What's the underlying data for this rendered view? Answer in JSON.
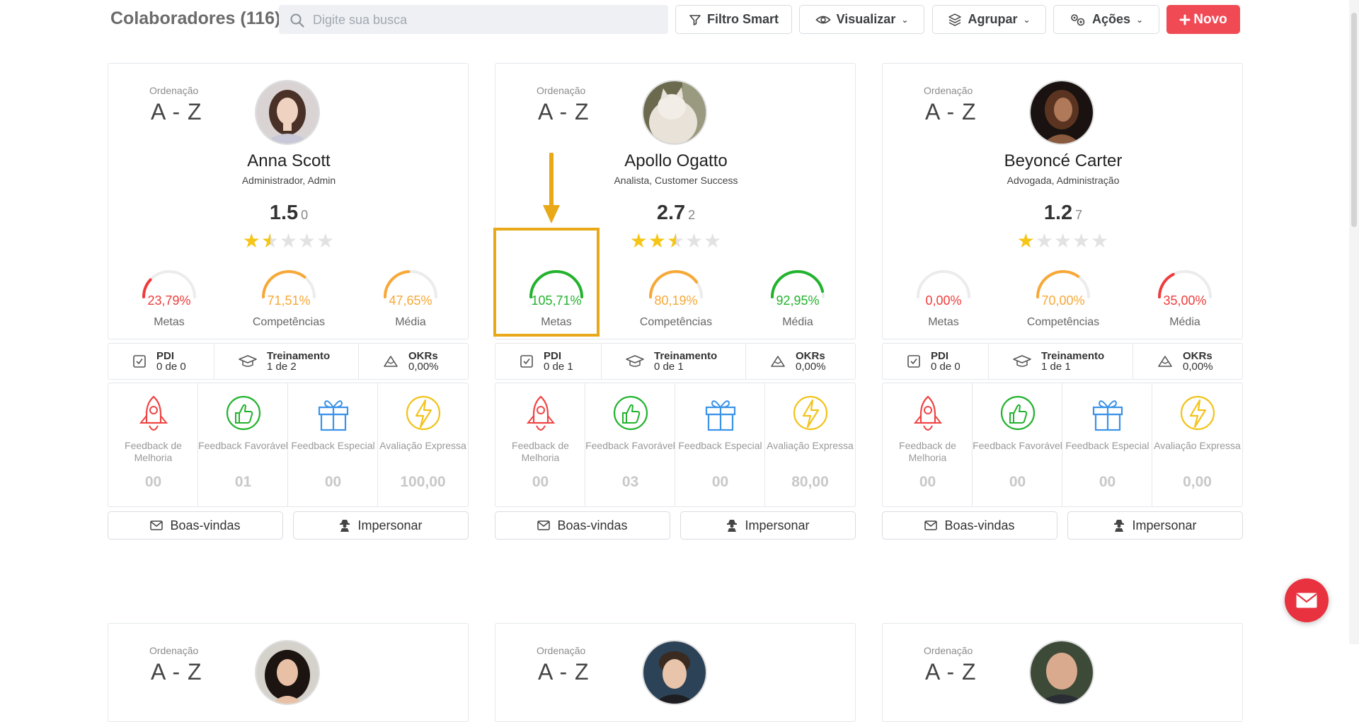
{
  "header": {
    "title": "Colaboradores (116)",
    "search_placeholder": "Digite sua busca",
    "filter_label": "Filtro Smart",
    "view_label": "Visualizar",
    "group_label": "Agrupar",
    "actions_label": "Ações",
    "new_label": "Novo",
    "new_color": "#f04a55"
  },
  "labels": {
    "ordering": "Ordenação",
    "ordering_value": "A - Z",
    "metas": "Metas",
    "competencias": "Competências",
    "media": "Média",
    "pdi": "PDI",
    "treinamento": "Treinamento",
    "okrs": "OKRs",
    "fb_melhoria": "Feedback de Melhoria",
    "fb_favoravel": "Feedback Favorável",
    "fb_especial": "Feedback Especial",
    "avaliacao": "Avaliação Expressa",
    "boas_vindas": "Boas-vindas",
    "impersonar": "Impersonar"
  },
  "colors": {
    "red": "#ef3b3b",
    "orange": "#f7a836",
    "green": "#22b32e",
    "track": "#ececec",
    "star": "#f5c518"
  },
  "collaborators": [
    {
      "name": "Anna Scott",
      "role": "Administrador, Admin",
      "score": "1.5",
      "rating_count": "0",
      "stars": 1.5,
      "metas": "23,79%",
      "metas_pct": 23.79,
      "metas_color": "red",
      "competencias": "71,51%",
      "competencias_pct": 71.51,
      "competencias_color": "orange",
      "media": "47,65%",
      "media_pct": 47.65,
      "media_color": "orange",
      "pdi": "0 de 0",
      "treinamento": "1 de 2",
      "okrs": "0,00%",
      "fb_melhoria": "00",
      "fb_favoravel": "01",
      "fb_especial": "00",
      "avaliacao": "100,00",
      "avatar": "woman-portrait"
    },
    {
      "name": "Apollo Ogatto",
      "role": "Analista, Customer Success",
      "score": "2.7",
      "rating_count": "2",
      "stars": 2.5,
      "metas": "105,71%",
      "metas_pct": 100,
      "metas_color": "green",
      "competencias": "80,19%",
      "competencias_pct": 80.19,
      "competencias_color": "orange",
      "media": "92,95%",
      "media_pct": 92.95,
      "media_color": "green",
      "pdi": "0 de 1",
      "treinamento": "0 de 1",
      "okrs": "0,00%",
      "fb_melhoria": "00",
      "fb_favoravel": "03",
      "fb_especial": "00",
      "avaliacao": "80,00",
      "avatar": "cat-portrait"
    },
    {
      "name": "Beyoncé Carter",
      "role": "Advogada, Administração",
      "score": "1.2",
      "rating_count": "7",
      "stars": 1,
      "metas": "0,00%",
      "metas_pct": 0,
      "metas_color": "red",
      "competencias": "70,00%",
      "competencias_pct": 70,
      "competencias_color": "orange",
      "media": "35,00%",
      "media_pct": 35,
      "media_color": "red",
      "pdi": "0 de 0",
      "treinamento": "1 de 1",
      "okrs": "0,00%",
      "fb_melhoria": "00",
      "fb_favoravel": "00",
      "fb_especial": "00",
      "avaliacao": "0,00",
      "avatar": "woman-dark-portrait"
    }
  ],
  "next_row_avatars": [
    "woman-curly-portrait",
    "man-portrait",
    "bald-man-portrait"
  ]
}
